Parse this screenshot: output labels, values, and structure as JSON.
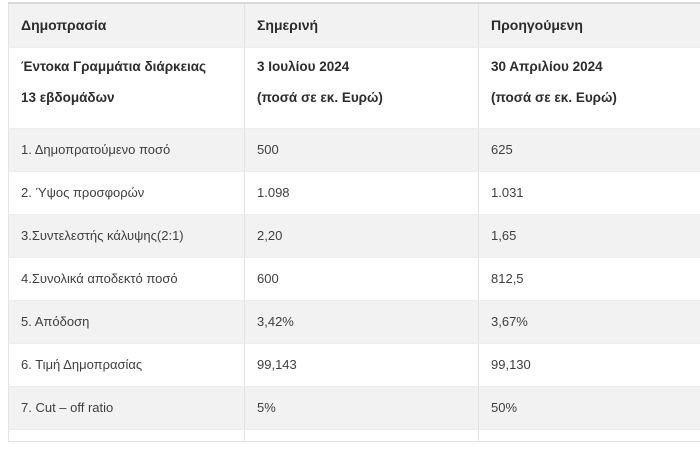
{
  "table": {
    "header": {
      "auction": "Δημοπρασία",
      "current": "Σημερινή",
      "previous": "Προηγούμενη"
    },
    "subheader": {
      "auction_line1": "Έντοκα Γραμμάτια διάρκειας",
      "auction_line2": "13 εβδομάδων",
      "current_line1": "3 Ιουλίου 2024",
      "current_line2": "(ποσά σε εκ. Ευρώ)",
      "previous_line1": "30 Απριλίου 2024",
      "previous_line2": "(ποσά σε εκ. Ευρώ)"
    },
    "rows": [
      {
        "label": "1. Δημοπρατούμενο ποσό",
        "current": "500",
        "previous": "625"
      },
      {
        "label": "2. Ύψος προσφορών",
        "current": "1.098",
        "previous": "1.031"
      },
      {
        "label": "3.Συντελεστής κάλυψης(2:1)",
        "current": "2,20",
        "previous": "1,65"
      },
      {
        "label": "4.Συνολικά αποδεκτό ποσό",
        "current": "600",
        "previous": "812,5"
      },
      {
        "label": "5. Απόδοση",
        "current": "3,42%",
        "previous": "3,67%"
      },
      {
        "label": "6. Τιμή Δημοπρασίας",
        "current": "99,143",
        "previous": "99,130"
      },
      {
        "label": "7. Cut – off ratio",
        "current": "5%",
        "previous": "50%"
      }
    ]
  },
  "colors": {
    "stripe_background": "#f2f2f2",
    "row_background": "#ffffff",
    "cell_border": "#e2e2e2",
    "table_top_border": "#d9d9d9",
    "header_text": "#2c2c2c",
    "body_text": "#3f3f3f"
  }
}
